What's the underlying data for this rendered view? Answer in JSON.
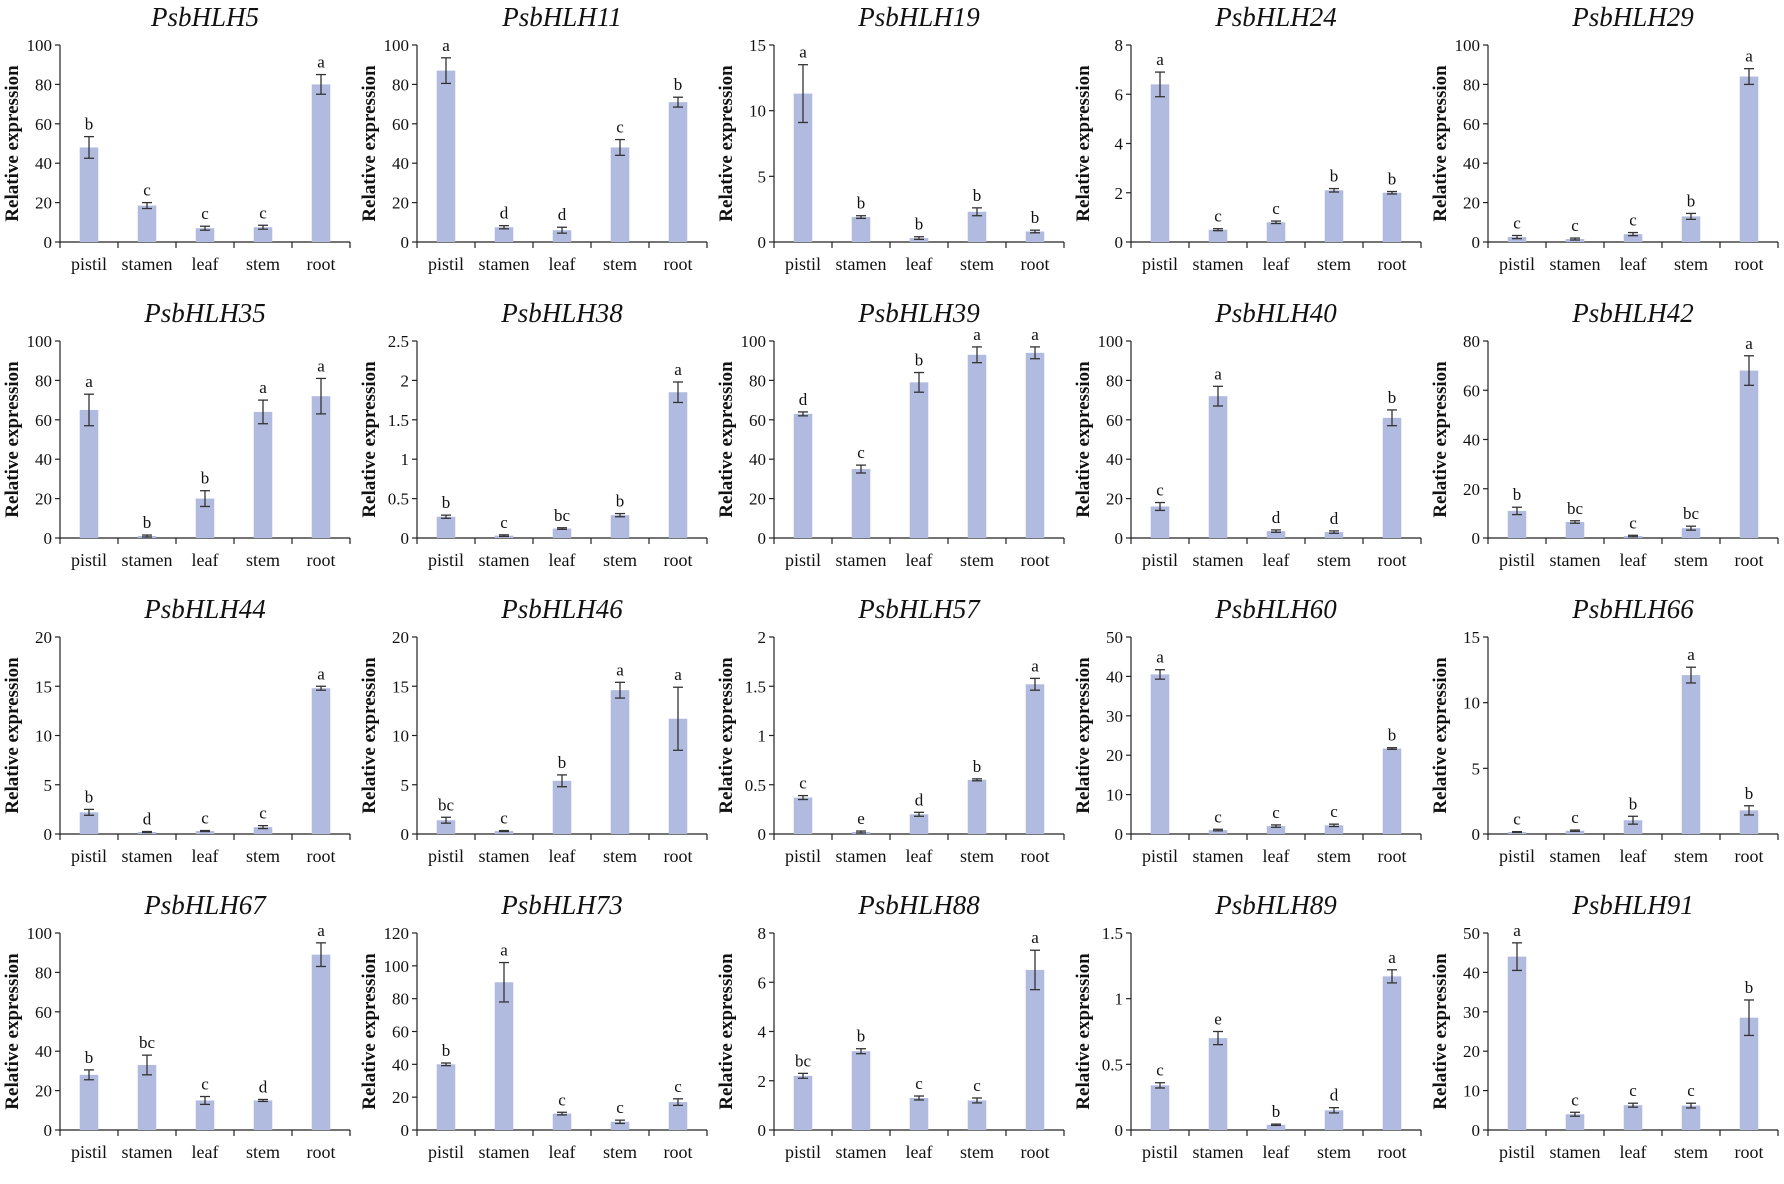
{
  "figure": {
    "y_label": "Relative expression",
    "categories": [
      "pistil",
      "stamen",
      "leaf",
      "stem",
      "root"
    ],
    "bar_color": "#b1bbdf"
  },
  "chart_data": [
    {
      "type": "bar",
      "title": "PsbHLH5",
      "ylabel": "Relative expression",
      "categories": [
        "pistil",
        "stamen",
        "leaf",
        "stem",
        "root"
      ],
      "ylim": [
        0,
        100
      ],
      "yticks": [
        0,
        20,
        40,
        60,
        80,
        100
      ],
      "values": [
        48,
        18.5,
        7,
        7.5,
        80
      ],
      "errors": [
        5.5,
        1.5,
        1,
        1,
        5
      ],
      "letters": [
        "b",
        "c",
        "c",
        "c",
        "a"
      ]
    },
    {
      "type": "bar",
      "title": "PsbHLH11",
      "ylabel": "Relative expression",
      "categories": [
        "pistil",
        "stamen",
        "leaf",
        "stem",
        "root"
      ],
      "ylim": [
        0,
        100
      ],
      "yticks": [
        0,
        20,
        40,
        60,
        80,
        100
      ],
      "values": [
        87,
        7.5,
        6,
        48,
        71
      ],
      "errors": [
        6.5,
        0.8,
        1.5,
        4,
        2.5
      ],
      "letters": [
        "a",
        "d",
        "d",
        "c",
        "b"
      ]
    },
    {
      "type": "bar",
      "title": "PsbHLH19",
      "ylabel": "Relative expression",
      "categories": [
        "pistil",
        "stamen",
        "leaf",
        "stem",
        "root"
      ],
      "ylim": [
        0,
        15
      ],
      "yticks": [
        0,
        5,
        10,
        15
      ],
      "values": [
        11.3,
        1.9,
        0.3,
        2.3,
        0.8
      ],
      "errors": [
        2.2,
        0.1,
        0.1,
        0.3,
        0.1
      ],
      "letters": [
        "a",
        "b",
        "b",
        "b",
        "b"
      ]
    },
    {
      "type": "bar",
      "title": "PsbHLH24",
      "ylabel": "Relative expression",
      "categories": [
        "pistil",
        "stamen",
        "leaf",
        "stem",
        "root"
      ],
      "ylim": [
        0,
        8
      ],
      "yticks": [
        0,
        2,
        4,
        6,
        8
      ],
      "values": [
        6.4,
        0.5,
        0.8,
        2.1,
        2.0
      ],
      "errors": [
        0.5,
        0.04,
        0.05,
        0.07,
        0.05
      ],
      "letters": [
        "a",
        "c",
        "c",
        "b",
        "b"
      ]
    },
    {
      "type": "bar",
      "title": "PsbHLH29",
      "ylabel": "Relative expression",
      "categories": [
        "pistil",
        "stamen",
        "leaf",
        "stem",
        "root"
      ],
      "ylim": [
        0,
        100
      ],
      "yticks": [
        0,
        20,
        40,
        60,
        80,
        100
      ],
      "values": [
        2.5,
        1.5,
        4,
        13,
        84
      ],
      "errors": [
        0.8,
        0.5,
        0.8,
        1.5,
        4
      ],
      "letters": [
        "c",
        "c",
        "c",
        "b",
        "a"
      ]
    },
    {
      "type": "bar",
      "title": "PsbHLH35",
      "ylabel": "Relative expression",
      "categories": [
        "pistil",
        "stamen",
        "leaf",
        "stem",
        "root"
      ],
      "ylim": [
        0,
        100
      ],
      "yticks": [
        0,
        20,
        40,
        60,
        80,
        100
      ],
      "values": [
        65,
        1,
        20,
        64,
        72
      ],
      "errors": [
        8,
        0.5,
        4,
        6,
        9
      ],
      "letters": [
        "a",
        "b",
        "b",
        "a",
        "a"
      ]
    },
    {
      "type": "bar",
      "title": "PsbHLH38",
      "ylabel": "Relative expression",
      "categories": [
        "pistil",
        "stamen",
        "leaf",
        "stem",
        "root"
      ],
      "ylim": [
        0,
        2.5
      ],
      "yticks": [
        0,
        0.5,
        1,
        1.5,
        2,
        2.5
      ],
      "values": [
        0.27,
        0.03,
        0.12,
        0.29,
        1.85
      ],
      "errors": [
        0.02,
        0.01,
        0.01,
        0.02,
        0.13
      ],
      "letters": [
        "b",
        "c",
        "bc",
        "b",
        "a"
      ]
    },
    {
      "type": "bar",
      "title": "PsbHLH39",
      "ylabel": "Relative expression",
      "categories": [
        "pistil",
        "stamen",
        "leaf",
        "stem",
        "root"
      ],
      "ylim": [
        0,
        100
      ],
      "yticks": [
        0,
        20,
        40,
        60,
        80,
        100
      ],
      "values": [
        63,
        35,
        79,
        93,
        94
      ],
      "errors": [
        1,
        2,
        5,
        4,
        3
      ],
      "letters": [
        "d",
        "c",
        "b",
        "a",
        "a"
      ]
    },
    {
      "type": "bar",
      "title": "PsbHLH40",
      "ylabel": "Relative expression",
      "categories": [
        "pistil",
        "stamen",
        "leaf",
        "stem",
        "root"
      ],
      "ylim": [
        0,
        100
      ],
      "yticks": [
        0,
        20,
        40,
        60,
        80,
        100
      ],
      "values": [
        16,
        72,
        3.5,
        3,
        61
      ],
      "errors": [
        2,
        5,
        0.6,
        0.6,
        4
      ],
      "letters": [
        "c",
        "a",
        "d",
        "d",
        "b"
      ]
    },
    {
      "type": "bar",
      "title": "PsbHLH42",
      "ylabel": "Relative expression",
      "categories": [
        "pistil",
        "stamen",
        "leaf",
        "stem",
        "root"
      ],
      "ylim": [
        0,
        80
      ],
      "yticks": [
        0,
        20,
        40,
        60,
        80
      ],
      "values": [
        11,
        6.5,
        0.8,
        4,
        68
      ],
      "errors": [
        1.5,
        0.5,
        0.3,
        0.8,
        6
      ],
      "letters": [
        "b",
        "bc",
        "c",
        "bc",
        "a"
      ]
    },
    {
      "type": "bar",
      "title": "PsbHLH44",
      "ylabel": "Relative expression",
      "categories": [
        "pistil",
        "stamen",
        "leaf",
        "stem",
        "root"
      ],
      "ylim": [
        0,
        20
      ],
      "yticks": [
        0,
        5,
        10,
        15,
        20
      ],
      "values": [
        2.2,
        0.2,
        0.3,
        0.7,
        14.8
      ],
      "errors": [
        0.3,
        0.05,
        0.05,
        0.15,
        0.2
      ],
      "letters": [
        "b",
        "d",
        "c",
        "c",
        "a"
      ]
    },
    {
      "type": "bar",
      "title": "PsbHLH46",
      "ylabel": "Relative expression",
      "categories": [
        "pistil",
        "stamen",
        "leaf",
        "stem",
        "root"
      ],
      "ylim": [
        0,
        20
      ],
      "yticks": [
        0,
        5,
        10,
        15,
        20
      ],
      "values": [
        1.4,
        0.3,
        5.4,
        14.6,
        11.7
      ],
      "errors": [
        0.3,
        0.05,
        0.6,
        0.8,
        3.2
      ],
      "letters": [
        "bc",
        "c",
        "b",
        "a",
        "a"
      ]
    },
    {
      "type": "bar",
      "title": "PsbHLH57",
      "ylabel": "Relative expression",
      "categories": [
        "pistil",
        "stamen",
        "leaf",
        "stem",
        "root"
      ],
      "ylim": [
        0,
        2
      ],
      "yticks": [
        0,
        0.5,
        1,
        1.5,
        2
      ],
      "values": [
        0.37,
        0.02,
        0.2,
        0.55,
        1.52
      ],
      "errors": [
        0.02,
        0.01,
        0.02,
        0.01,
        0.06
      ],
      "letters": [
        "c",
        "e",
        "d",
        "b",
        "a"
      ]
    },
    {
      "type": "bar",
      "title": "PsbHLH60",
      "ylabel": "Relative expression",
      "categories": [
        "pistil",
        "stamen",
        "leaf",
        "stem",
        "root"
      ],
      "ylim": [
        0,
        50
      ],
      "yticks": [
        0,
        10,
        20,
        30,
        40,
        50
      ],
      "values": [
        40.5,
        1,
        2,
        2.2,
        21.7
      ],
      "errors": [
        1.2,
        0.2,
        0.3,
        0.3,
        0.2
      ],
      "letters": [
        "a",
        "c",
        "c",
        "c",
        "b"
      ]
    },
    {
      "type": "bar",
      "title": "PsbHLH66",
      "ylabel": "Relative expression",
      "categories": [
        "pistil",
        "stamen",
        "leaf",
        "stem",
        "root"
      ],
      "ylim": [
        0,
        15
      ],
      "yticks": [
        0,
        5,
        10,
        15
      ],
      "values": [
        0.15,
        0.25,
        1.05,
        12.1,
        1.8
      ],
      "errors": [
        0.03,
        0.05,
        0.3,
        0.6,
        0.35
      ],
      "letters": [
        "c",
        "c",
        "b",
        "a",
        "b"
      ]
    },
    {
      "type": "bar",
      "title": "PsbHLH67",
      "ylabel": "Relative expression",
      "categories": [
        "pistil",
        "stamen",
        "leaf",
        "stem",
        "root"
      ],
      "ylim": [
        0,
        100
      ],
      "yticks": [
        0,
        20,
        40,
        60,
        80,
        100
      ],
      "values": [
        28,
        33,
        15,
        15,
        89
      ],
      "errors": [
        2.5,
        5,
        2,
        0.5,
        6
      ],
      "letters": [
        "b",
        "bc",
        "c",
        "d",
        "a"
      ]
    },
    {
      "type": "bar",
      "title": "PsbHLH73",
      "ylabel": "Relative expression",
      "categories": [
        "pistil",
        "stamen",
        "leaf",
        "stem",
        "root"
      ],
      "ylim": [
        0,
        120
      ],
      "yticks": [
        0,
        20,
        40,
        60,
        80,
        100,
        120
      ],
      "values": [
        40,
        90,
        10,
        5,
        17
      ],
      "errors": [
        0.8,
        12,
        0.8,
        1,
        2
      ],
      "letters": [
        "b",
        "a",
        "c",
        "c",
        "c"
      ]
    },
    {
      "type": "bar",
      "title": "PsbHLH88",
      "ylabel": "Relative expression",
      "categories": [
        "pistil",
        "stamen",
        "leaf",
        "stem",
        "root"
      ],
      "ylim": [
        0,
        8
      ],
      "yticks": [
        0,
        2,
        4,
        6,
        8
      ],
      "values": [
        2.2,
        3.2,
        1.3,
        1.2,
        6.5
      ],
      "errors": [
        0.1,
        0.1,
        0.08,
        0.1,
        0.8
      ],
      "letters": [
        "bc",
        "b",
        "c",
        "c",
        "a"
      ]
    },
    {
      "type": "bar",
      "title": "PsbHLH89",
      "ylabel": "Relative expression",
      "categories": [
        "pistil",
        "stamen",
        "leaf",
        "stem",
        "root"
      ],
      "ylim": [
        0,
        1.5
      ],
      "yticks": [
        0,
        0.5,
        1,
        1.5
      ],
      "values": [
        0.34,
        0.7,
        0.04,
        0.15,
        1.17
      ],
      "errors": [
        0.02,
        0.05,
        0.005,
        0.02,
        0.05
      ],
      "letters": [
        "c",
        "e",
        "b",
        "d",
        "a"
      ]
    },
    {
      "type": "bar",
      "title": "PsbHLH91",
      "ylabel": "Relative expression",
      "categories": [
        "pistil",
        "stamen",
        "leaf",
        "stem",
        "root"
      ],
      "ylim": [
        0,
        50
      ],
      "yticks": [
        0,
        10,
        20,
        30,
        40,
        50
      ],
      "values": [
        44,
        4,
        6.3,
        6.2,
        28.5
      ],
      "errors": [
        3.5,
        0.5,
        0.5,
        0.6,
        4.5
      ],
      "letters": [
        "a",
        "c",
        "c",
        "c",
        "b"
      ]
    }
  ]
}
